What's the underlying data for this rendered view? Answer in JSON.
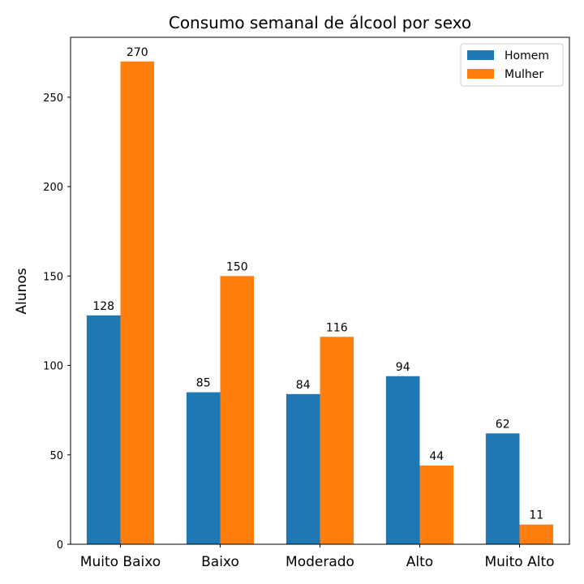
{
  "chart_data": {
    "type": "bar",
    "title": "Consumo semanal de álcool por sexo",
    "xlabel": "",
    "ylabel": "Alunos",
    "categories": [
      "Muito Baixo",
      "Baixo",
      "Moderado",
      "Alto",
      "Muito Alto"
    ],
    "series": [
      {
        "name": "Homem",
        "values": [
          128,
          85,
          84,
          94,
          62
        ],
        "color": "#1f77b4"
      },
      {
        "name": "Mulher",
        "values": [
          270,
          150,
          116,
          44,
          11
        ],
        "color": "#ff7f0e"
      }
    ],
    "ylim": [
      0,
      283.5
    ],
    "yticks": [
      0,
      50,
      100,
      150,
      200,
      250
    ],
    "grid": false,
    "legend_position": "top-right",
    "data_labels": true
  }
}
